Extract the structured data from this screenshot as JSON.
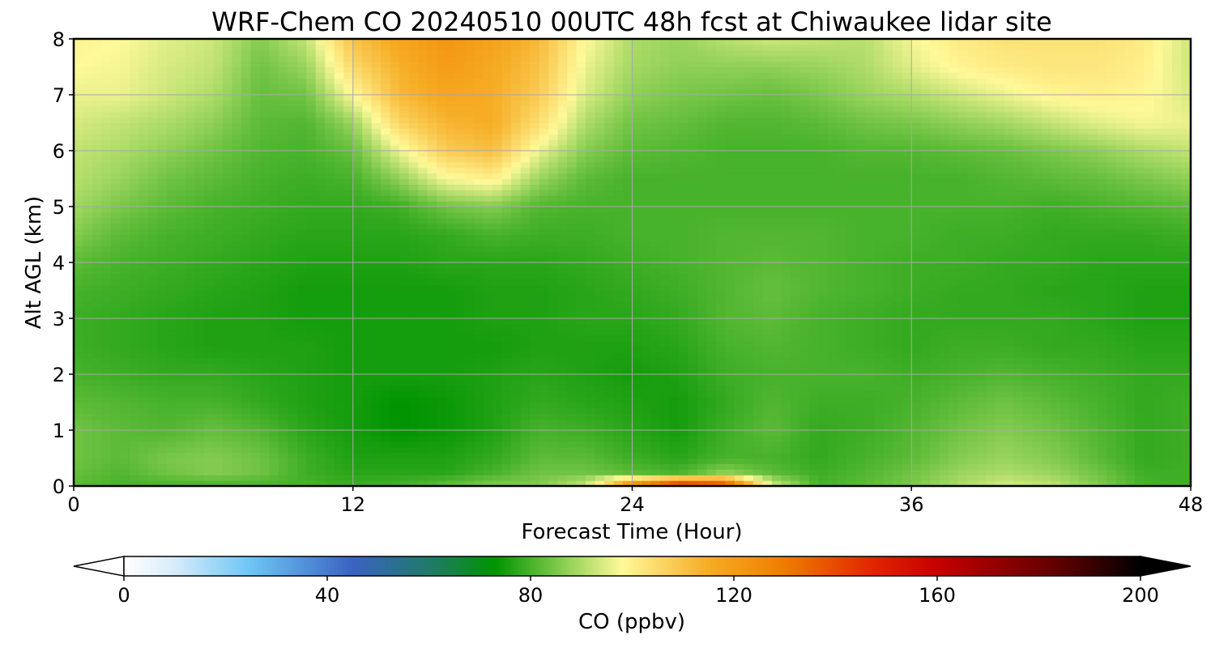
{
  "chart_data": {
    "type": "heatmap",
    "title": "WRF-Chem CO  20240510 00UTC 48h fcst at Chiwaukee lidar site",
    "xlabel": "Forecast Time (Hour)",
    "ylabel": "Alt AGL (km)",
    "xlim": [
      0,
      48
    ],
    "ylim": [
      0,
      8
    ],
    "x_ticks": [
      "0",
      "12",
      "24",
      "36",
      "48"
    ],
    "y_ticks": [
      "0",
      "1",
      "2",
      "3",
      "4",
      "5",
      "6",
      "7",
      "8"
    ],
    "grid": true,
    "colorbar": {
      "label": "CO  (ppbv)",
      "range": [
        0,
        200
      ],
      "extend": "both",
      "ticks": [
        "0",
        "40",
        "80",
        "120",
        "160",
        "200"
      ],
      "stops": [
        {
          "value": 0,
          "color": "#ffffff"
        },
        {
          "value": 10,
          "color": "#d6ecfb"
        },
        {
          "value": 25,
          "color": "#6cc5f4"
        },
        {
          "value": 45,
          "color": "#3b62c2"
        },
        {
          "value": 60,
          "color": "#1f7a6a"
        },
        {
          "value": 73,
          "color": "#009400"
        },
        {
          "value": 88,
          "color": "#99d45c"
        },
        {
          "value": 98,
          "color": "#fff999"
        },
        {
          "value": 115,
          "color": "#f6ac24"
        },
        {
          "value": 130,
          "color": "#f07c00"
        },
        {
          "value": 148,
          "color": "#e02200"
        },
        {
          "value": 160,
          "color": "#c60000"
        },
        {
          "value": 185,
          "color": "#5a0000"
        },
        {
          "value": 200,
          "color": "#000000"
        }
      ]
    },
    "field": {
      "x": [
        0,
        2,
        4,
        6,
        8,
        10,
        12,
        14,
        16,
        18,
        20,
        22,
        24,
        26,
        28,
        30,
        32,
        34,
        36,
        38,
        40,
        42,
        44,
        46,
        48
      ],
      "y": [
        0,
        0.25,
        0.5,
        1,
        1.5,
        2,
        2.5,
        3,
        3.5,
        4,
        4.5,
        5,
        5.5,
        6,
        6.5,
        7,
        7.5,
        8
      ],
      "values": [
        [
          82,
          80,
          80,
          80,
          80,
          80,
          79,
          80,
          83,
          86,
          86,
          93,
          130,
          152,
          145,
          95,
          80,
          82,
          85,
          90,
          94,
          92,
          86,
          80,
          79
        ],
        [
          83,
          81,
          84,
          86,
          84,
          79,
          77,
          77,
          77,
          80,
          84,
          84,
          82,
          80,
          87,
          82,
          79,
          81,
          84,
          88,
          90,
          88,
          84,
          79,
          79
        ],
        [
          84,
          82,
          85,
          86,
          84,
          79,
          76,
          76,
          76,
          78,
          82,
          82,
          79,
          77,
          80,
          80,
          78,
          80,
          82,
          86,
          88,
          86,
          82,
          78,
          79
        ],
        [
          84,
          82,
          81,
          83,
          81,
          77,
          75,
          73,
          74,
          76,
          80,
          79,
          77,
          75,
          79,
          82,
          78,
          79,
          81,
          84,
          86,
          84,
          81,
          78,
          79
        ],
        [
          82,
          81,
          80,
          80,
          78,
          76,
          75,
          73,
          74,
          76,
          78,
          77,
          76,
          75,
          78,
          81,
          79,
          79,
          80,
          82,
          84,
          82,
          80,
          78,
          79
        ],
        [
          80,
          79,
          78,
          78,
          77,
          76,
          75,
          75,
          75,
          76,
          77,
          76,
          75,
          76,
          79,
          80,
          80,
          80,
          79,
          80,
          81,
          80,
          79,
          78,
          78
        ],
        [
          79,
          78,
          77,
          76,
          76,
          76,
          75,
          75,
          75,
          75,
          76,
          76,
          76,
          77,
          80,
          81,
          80,
          79,
          78,
          79,
          79,
          78,
          78,
          77,
          77
        ],
        [
          79,
          78,
          77,
          76,
          76,
          75,
          75,
          75,
          75,
          76,
          76,
          77,
          77,
          78,
          81,
          82,
          80,
          79,
          78,
          78,
          78,
          78,
          77,
          76,
          76
        ],
        [
          80,
          79,
          78,
          77,
          76,
          75,
          75,
          75,
          75,
          76,
          76,
          77,
          78,
          79,
          81,
          83,
          81,
          80,
          79,
          78,
          78,
          77,
          77,
          76,
          76
        ],
        [
          82,
          80,
          79,
          78,
          77,
          76,
          76,
          76,
          77,
          77,
          77,
          78,
          79,
          80,
          81,
          82,
          81,
          80,
          79,
          79,
          78,
          78,
          77,
          77,
          77
        ],
        [
          86,
          82,
          80,
          79,
          78,
          77,
          77,
          77,
          78,
          80,
          79,
          79,
          80,
          80,
          81,
          81,
          81,
          80,
          80,
          79,
          79,
          78,
          78,
          78,
          79
        ],
        [
          89,
          85,
          82,
          80,
          79,
          78,
          78,
          79,
          84,
          86,
          81,
          80,
          80,
          80,
          80,
          80,
          80,
          80,
          80,
          80,
          80,
          79,
          80,
          81,
          82
        ],
        [
          91,
          88,
          84,
          82,
          80,
          79,
          80,
          87,
          97,
          100,
          88,
          82,
          80,
          80,
          80,
          80,
          80,
          80,
          80,
          80,
          81,
          82,
          83,
          85,
          87
        ],
        [
          92,
          90,
          87,
          84,
          81,
          80,
          83,
          96,
          108,
          111,
          96,
          86,
          82,
          81,
          80,
          80,
          80,
          81,
          81,
          82,
          83,
          85,
          87,
          90,
          92
        ],
        [
          94,
          92,
          90,
          87,
          82,
          81,
          88,
          106,
          113,
          115,
          104,
          90,
          84,
          83,
          81,
          81,
          82,
          84,
          85,
          87,
          89,
          92,
          95,
          97,
          96
        ],
        [
          96,
          96,
          93,
          90,
          83,
          84,
          98,
          112,
          117,
          115,
          108,
          94,
          87,
          85,
          84,
          83,
          85,
          88,
          90,
          93,
          96,
          99,
          100,
          99,
          94
        ],
        [
          98,
          97,
          94,
          92,
          84,
          88,
          105,
          114,
          120,
          116,
          110,
          96,
          89,
          87,
          87,
          87,
          88,
          90,
          95,
          99,
          101,
          102,
          102,
          100,
          93
        ],
        [
          99,
          98,
          95,
          93,
          86,
          92,
          110,
          117,
          122,
          118,
          112,
          98,
          90,
          88,
          91,
          93,
          92,
          91,
          97,
          101,
          103,
          103,
          103,
          101,
          93
        ]
      ]
    }
  }
}
